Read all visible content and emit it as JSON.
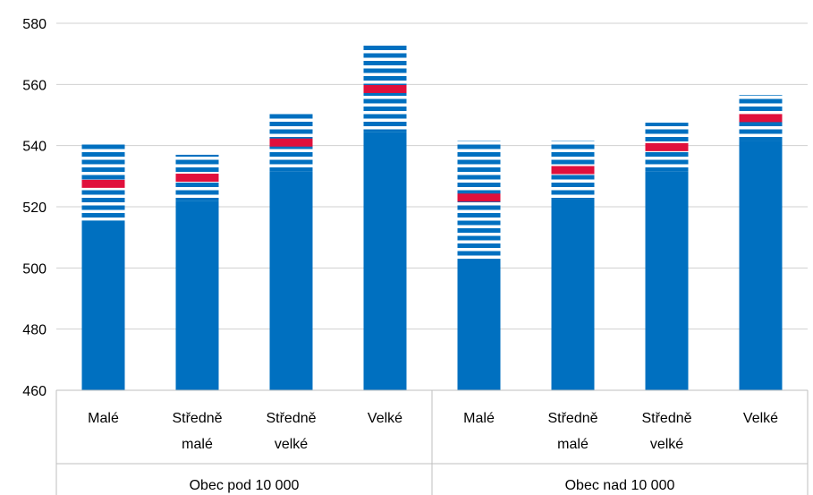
{
  "chart_data": {
    "type": "bar",
    "ylim": [
      460,
      580
    ],
    "yticks": [
      460,
      480,
      500,
      520,
      540,
      560,
      580
    ],
    "grid": true,
    "groups": [
      {
        "label": "Obec pod 10 000",
        "categories": [
          {
            "label_lines": [
              "Malé"
            ],
            "solid_top": 515.5,
            "interval": [
              515.5,
              541
            ],
            "mean": 527.5
          },
          {
            "label_lines": [
              "Středně",
              "malé"
            ],
            "solid_top": 522,
            "interval": [
              522,
              537
            ],
            "mean": 529.5
          },
          {
            "label_lines": [
              "Středně",
              "velké"
            ],
            "solid_top": 531.5,
            "interval": [
              531.5,
              550.5
            ],
            "mean": 541
          },
          {
            "label_lines": [
              "Velké"
            ],
            "solid_top": 544.5,
            "interval": [
              544.5,
              573.5
            ],
            "mean": 558.5
          }
        ]
      },
      {
        "label": "Obec nad 10 000",
        "categories": [
          {
            "label_lines": [
              "Malé"
            ],
            "solid_top": 503,
            "interval": [
              503,
              541.5
            ],
            "mean": 523
          },
          {
            "label_lines": [
              "Středně",
              "malé"
            ],
            "solid_top": 522.5,
            "interval": [
              522.5,
              541.5
            ],
            "mean": 532
          },
          {
            "label_lines": [
              "Středně",
              "velké"
            ],
            "solid_top": 531.5,
            "interval": [
              531.5,
              547.5
            ],
            "mean": 539.5
          },
          {
            "label_lines": [
              "Velké"
            ],
            "solid_top": 541.5,
            "interval": [
              541.5,
              556.5
            ],
            "mean": 549
          }
        ]
      }
    ],
    "colors": {
      "bar": "#0070C0",
      "mean": "#E0103C",
      "grid": "#D0D0D0",
      "axis": "#BFBFBF"
    }
  }
}
